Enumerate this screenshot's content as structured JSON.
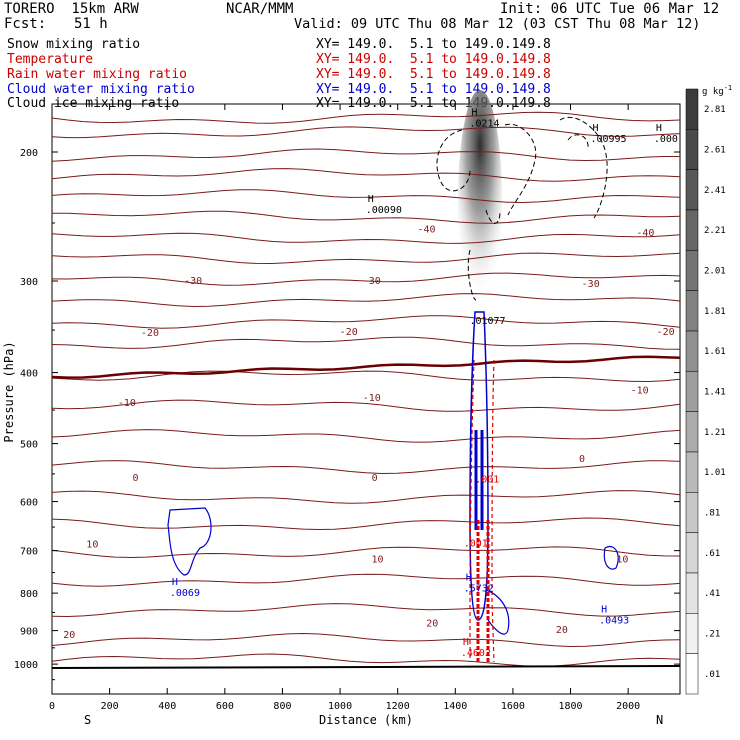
{
  "header": {
    "model": "TORERO  15km ARW",
    "org": "NCAR/MMM",
    "init": "Init: 06 UTC Tue 06 Mar 12",
    "fcst_label": "Fcst:",
    "fcst_value": "51 h",
    "valid": "Valid: 09 UTC Thu 08 Mar 12 (03 CST Thu 08 Mar 12)"
  },
  "legend": [
    {
      "name": "Snow mixing ratio",
      "xy": "",
      "color": "#000000"
    },
    {
      "name": "Temperature",
      "xy": "XY= 149.0.  5.1 to 149.0.149.8",
      "color": "#cc0000"
    },
    {
      "name": "Rain water mixing ratio",
      "xy": "XY= 149.0.  5.1 to 149.0.149.8",
      "color": "#cc0000"
    },
    {
      "name": "Cloud water mixing ratio",
      "xy": "XY= 149.0.  5.1 to 149.0.149.8",
      "color": "#0000cc"
    },
    {
      "name": "Cloud ice mixing ratio",
      "xy": "XY= 149.0.  5.1 to 149.0.149.8",
      "color": "#000000"
    }
  ],
  "snow_xy": "XY= 149.0.  5.1 to 149.0.149.8",
  "colorbar": {
    "unit": "g kg",
    "unit_exp": "-1",
    "labels": [
      "2.81",
      "2.61",
      "2.41",
      "2.21",
      "2.01",
      "1.81",
      "1.61",
      "1.41",
      "1.21",
      "1.01",
      ".81",
      ".61",
      ".41",
      ".21",
      ".01"
    ]
  },
  "colors": {
    "temperature": "#7a1a1a",
    "freezing": "#6b0000",
    "rain": "#dd0000",
    "cloud_water": "#0000cc",
    "cloud_ice": "#000000"
  },
  "chart_data": {
    "type": "cross-section contour",
    "xlabel": "Distance (km)",
    "ylabel": "Pressure (hPa)",
    "xlim": [
      0,
      2180
    ],
    "x_ticks": [
      0,
      200,
      400,
      600,
      800,
      1000,
      1200,
      1400,
      1600,
      1800,
      2000
    ],
    "y_ticks": [
      200,
      300,
      400,
      500,
      600,
      700,
      800,
      900,
      1000
    ],
    "y_scale": "log-pressure",
    "left_end": "S",
    "right_end": "N",
    "temperature_labels": [
      {
        "text": "-40",
        "x": 1300,
        "p": 255
      },
      {
        "text": "-40",
        "x": 2060,
        "p": 258
      },
      {
        "text": "-30",
        "x": 490,
        "p": 300
      },
      {
        "text": "-30",
        "x": 1110,
        "p": 300
      },
      {
        "text": "-30",
        "x": 1870,
        "p": 303
      },
      {
        "text": "-20",
        "x": 340,
        "p": 353
      },
      {
        "text": "-20",
        "x": 1030,
        "p": 352
      },
      {
        "text": "-20",
        "x": 2130,
        "p": 352
      },
      {
        "text": "-10",
        "x": 260,
        "p": 440
      },
      {
        "text": "-10",
        "x": 1110,
        "p": 433
      },
      {
        "text": "-10",
        "x": 2040,
        "p": 423
      },
      {
        "text": "0",
        "x": 290,
        "p": 557
      },
      {
        "text": "0",
        "x": 1120,
        "p": 557
      },
      {
        "text": "0",
        "x": 1840,
        "p": 525
      },
      {
        "text": "10",
        "x": 140,
        "p": 687
      },
      {
        "text": "10",
        "x": 1130,
        "p": 720
      },
      {
        "text": "10",
        "x": 1980,
        "p": 720
      },
      {
        "text": "20",
        "x": 60,
        "p": 913
      },
      {
        "text": "20",
        "x": 1320,
        "p": 880
      },
      {
        "text": "20",
        "x": 1770,
        "p": 898
      }
    ],
    "maxima_labels": [
      {
        "mark": "H",
        "value": ".0214",
        "x": 1470,
        "p": 183,
        "series": "cloud_ice"
      },
      {
        "mark": "H",
        "value": ".00995",
        "x": 1890,
        "p": 192,
        "series": "cloud_ice"
      },
      {
        "mark": "H",
        "value": ".000",
        "x": 2110,
        "p": 192,
        "series": "cloud_ice"
      },
      {
        "mark": "H",
        "value": ".00090",
        "x": 1110,
        "p": 240,
        "series": "cloud_ice"
      },
      {
        "mark": "",
        "value": ".01077",
        "x": 1470,
        "p": 340,
        "series": "cloud_ice"
      },
      {
        "mark": "H",
        "value": ".0069",
        "x": 430,
        "p": 800,
        "series": "cloud_water"
      },
      {
        "mark": "H",
        "value": ".0493",
        "x": 1920,
        "p": 872,
        "series": "cloud_water"
      },
      {
        "mark": "",
        "value": ".001",
        "x": 1490,
        "p": 560,
        "series": "rain"
      },
      {
        "mark": "",
        "value": ".001",
        "x": 1450,
        "p": 685,
        "series": "rain"
      },
      {
        "mark": "H",
        "value": ".5732",
        "x": 1450,
        "p": 788,
        "series": "cloud_water"
      },
      {
        "mark": "H",
        "value": ".4602",
        "x": 1440,
        "p": 965,
        "series": "rain"
      }
    ]
  }
}
